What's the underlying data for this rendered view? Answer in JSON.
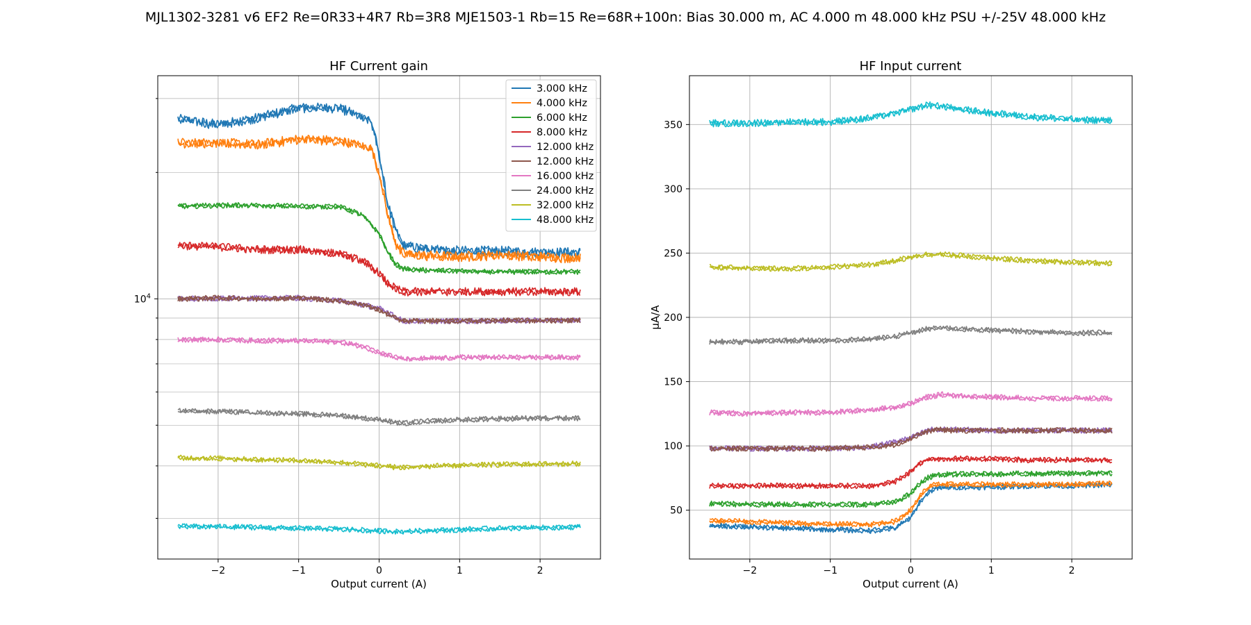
{
  "suptitle": "MJL1302-3281 v6 EF2 Re=0R33+4R7 Rb=3R8 MJE1503-1 Rb=15 Re=68R+100n: Bias 30.000 m, AC 4.000 m 48.000 kHz PSU +/-25V 48.000 kHz",
  "colors": {
    "3.000 kHz": "#1f77b4",
    "4.000 kHz": "#ff7f0e",
    "6.000 kHz": "#2ca02c",
    "8.000 kHz": "#d62728",
    "12.000 kHz a": "#9467bd",
    "12.000 kHz b": "#8c564b",
    "16.000 kHz": "#e377c2",
    "24.000 kHz": "#7f7f7f",
    "32.000 kHz": "#bcbd22",
    "48.000 kHz": "#17becf"
  },
  "chart_data": [
    {
      "type": "line",
      "title": "HF Current gain",
      "xlabel": "Output current (A)",
      "ylabel": "",
      "yscale": "log",
      "xlim": [
        -2.75,
        2.75
      ],
      "ylim": [
        2400,
        34000
      ],
      "xticks": [
        -2,
        -1,
        0,
        1,
        2
      ],
      "xtick_labels": [
        "−2",
        "−1",
        "0",
        "1",
        "2"
      ],
      "ytick_label": {
        "base": "10",
        "exp": "4",
        "value": 10000
      },
      "grid": true,
      "legend_position": "top-right",
      "legend": [
        "3.000 kHz",
        "4.000 kHz",
        "6.000 kHz",
        "8.000 kHz",
        "12.000 kHz",
        "12.000 kHz",
        "16.000 kHz",
        "24.000 kHz",
        "32.000 kHz",
        "48.000 kHz"
      ],
      "series": [
        {
          "name": "3.000 kHz",
          "color": "#1f77b4",
          "x": [
            -2.5,
            -2.0,
            -1.5,
            -1.0,
            -0.5,
            -0.1,
            0.0,
            0.1,
            0.2,
            0.3,
            0.5,
            1.0,
            1.5,
            2.0,
            2.5
          ],
          "y": [
            26800,
            26000,
            27000,
            28500,
            28500,
            26500,
            22000,
            17000,
            14600,
            13400,
            13200,
            13000,
            13000,
            12900,
            12900
          ]
        },
        {
          "name": "4.000 kHz",
          "color": "#ff7f0e",
          "x": [
            -2.5,
            -2.0,
            -1.5,
            -1.0,
            -0.5,
            -0.1,
            0.0,
            0.1,
            0.2,
            0.3,
            0.5,
            1.0,
            1.5,
            2.0,
            2.5
          ],
          "y": [
            23500,
            23500,
            23300,
            24000,
            23800,
            22800,
            20000,
            16000,
            13600,
            12800,
            12700,
            12600,
            12700,
            12600,
            12500
          ]
        },
        {
          "name": "6.000 kHz",
          "color": "#2ca02c",
          "x": [
            -2.5,
            -2.0,
            -1.5,
            -1.0,
            -0.5,
            -0.2,
            0.0,
            0.1,
            0.2,
            0.3,
            0.5,
            1.0,
            1.5,
            2.0,
            2.5
          ],
          "y": [
            16600,
            16700,
            16700,
            16600,
            16600,
            15800,
            14300,
            13000,
            12100,
            11800,
            11700,
            11650,
            11600,
            11600,
            11600
          ]
        },
        {
          "name": "8.000 kHz",
          "color": "#d62728",
          "x": [
            -2.5,
            -2.0,
            -1.5,
            -1.0,
            -0.5,
            -0.2,
            0.0,
            0.1,
            0.2,
            0.3,
            0.5,
            1.0,
            1.5,
            2.0,
            2.5
          ],
          "y": [
            13400,
            13300,
            13100,
            13100,
            12800,
            12300,
            11500,
            10900,
            10600,
            10400,
            10400,
            10400,
            10400,
            10400,
            10400
          ]
        },
        {
          "name": "12.000 kHz",
          "color": "#9467bd",
          "x": [
            -2.5,
            -1.0,
            -0.5,
            0.0,
            0.3,
            1.0,
            2.5
          ],
          "y": [
            10000,
            10050,
            9900,
            9500,
            8850,
            8850,
            8900
          ]
        },
        {
          "name": "12.000 kHz",
          "color": "#8c564b",
          "x": [
            -2.5,
            -2.0,
            -1.5,
            -1.0,
            -0.5,
            -0.2,
            0.0,
            0.2,
            0.3,
            0.5,
            1.0,
            1.5,
            2.0,
            2.5
          ],
          "y": [
            10000,
            10050,
            10000,
            10050,
            9900,
            9700,
            9400,
            9000,
            8850,
            8870,
            8850,
            8880,
            8870,
            8900
          ]
        },
        {
          "name": "16.000 kHz",
          "color": "#e377c2",
          "x": [
            -2.5,
            -2.0,
            -1.5,
            -1.0,
            -0.5,
            -0.2,
            0.0,
            0.2,
            0.3,
            0.5,
            1.0,
            1.5,
            2.0,
            2.5
          ],
          "y": [
            8000,
            8000,
            7950,
            7950,
            7900,
            7700,
            7450,
            7250,
            7200,
            7200,
            7250,
            7250,
            7250,
            7250
          ]
        },
        {
          "name": "24.000 kHz",
          "color": "#7f7f7f",
          "x": [
            -2.5,
            -2.0,
            -1.5,
            -1.0,
            -0.5,
            0.0,
            0.3,
            0.5,
            1.0,
            1.5,
            2.0,
            2.5
          ],
          "y": [
            5400,
            5400,
            5350,
            5320,
            5280,
            5150,
            5050,
            5100,
            5150,
            5180,
            5200,
            5200
          ]
        },
        {
          "name": "32.000 kHz",
          "color": "#bcbd22",
          "x": [
            -2.5,
            -2.0,
            -1.5,
            -1.0,
            -0.5,
            0.0,
            0.3,
            0.5,
            1.0,
            1.5,
            2.0,
            2.5
          ],
          "y": [
            4180,
            4170,
            4140,
            4120,
            4080,
            4000,
            3960,
            3990,
            4010,
            4030,
            4040,
            4050
          ]
        },
        {
          "name": "48.000 kHz",
          "color": "#17becf",
          "x": [
            -2.5,
            -2.0,
            -1.5,
            -1.0,
            -0.5,
            0.0,
            0.3,
            0.5,
            1.0,
            1.5,
            2.0,
            2.5
          ],
          "y": [
            2870,
            2865,
            2855,
            2840,
            2830,
            2800,
            2785,
            2800,
            2820,
            2840,
            2850,
            2860
          ]
        }
      ]
    },
    {
      "type": "line",
      "title": "HF Input current",
      "xlabel": "Output current (A)",
      "ylabel": "µA/A",
      "xlim": [
        -2.75,
        2.75
      ],
      "ylim": [
        12,
        388
      ],
      "xticks": [
        -2,
        -1,
        0,
        1,
        2
      ],
      "xtick_labels": [
        "−2",
        "−1",
        "0",
        "1",
        "2"
      ],
      "yticks": [
        50,
        100,
        150,
        200,
        250,
        300,
        350
      ],
      "ytick_labels": [
        "50",
        "100",
        "150",
        "200",
        "250",
        "300",
        "350"
      ],
      "grid": true,
      "series": [
        {
          "color": "#1f77b4",
          "x": [
            -2.5,
            -2.0,
            -1.5,
            -1.0,
            -0.5,
            -0.2,
            0.0,
            0.1,
            0.2,
            0.3,
            0.5,
            1.0,
            1.5,
            2.0,
            2.5
          ],
          "y": [
            38,
            37,
            36,
            35,
            34,
            36,
            44,
            55,
            63,
            67,
            68,
            68,
            69,
            69,
            70
          ]
        },
        {
          "color": "#ff7f0e",
          "x": [
            -2.5,
            -2.0,
            -1.5,
            -1.0,
            -0.5,
            -0.2,
            0.0,
            0.1,
            0.2,
            0.3,
            0.5,
            1.0,
            1.5,
            2.0,
            2.5
          ],
          "y": [
            42,
            41,
            40,
            39,
            39,
            41,
            50,
            60,
            67,
            70,
            70,
            70,
            70,
            70,
            71
          ]
        },
        {
          "color": "#2ca02c",
          "x": [
            -2.5,
            -2.0,
            -1.5,
            -1.0,
            -0.5,
            -0.2,
            0.0,
            0.1,
            0.2,
            0.3,
            0.5,
            1.0,
            1.5,
            2.0,
            2.5
          ],
          "y": [
            55,
            54.5,
            54.5,
            54.5,
            54.5,
            56,
            63,
            70,
            75,
            77,
            78,
            78,
            78.5,
            78.5,
            79
          ]
        },
        {
          "color": "#d62728",
          "x": [
            -2.5,
            -2.0,
            -1.5,
            -1.0,
            -0.5,
            -0.2,
            0.0,
            0.1,
            0.2,
            0.3,
            0.5,
            1.0,
            1.5,
            2.0,
            2.5
          ],
          "y": [
            69,
            69,
            69,
            69,
            69,
            72,
            80,
            86,
            89,
            90,
            90,
            90,
            89,
            89,
            89
          ]
        },
        {
          "color": "#9467bd",
          "x": [
            -2.5,
            -1.0,
            -0.5,
            0.0,
            0.2,
            0.3,
            1.0,
            2.5
          ],
          "y": [
            98,
            98,
            99,
            106,
            112,
            113,
            112,
            112
          ]
        },
        {
          "color": "#8c564b",
          "x": [
            -2.5,
            -2.0,
            -1.5,
            -1.0,
            -0.5,
            -0.2,
            0.0,
            0.2,
            0.3,
            0.5,
            1.0,
            1.5,
            2.0,
            2.5
          ],
          "y": [
            98,
            98,
            98,
            98,
            99,
            101,
            106,
            111,
            113,
            112,
            112,
            112,
            112,
            112
          ]
        },
        {
          "color": "#e377c2",
          "x": [
            -2.5,
            -2.0,
            -1.5,
            -1.0,
            -0.5,
            -0.2,
            0.0,
            0.2,
            0.4,
            0.6,
            1.0,
            1.5,
            2.0,
            2.5
          ],
          "y": [
            126,
            125,
            126,
            126,
            128,
            130,
            133,
            138,
            140,
            139,
            138,
            137,
            137,
            137
          ]
        },
        {
          "color": "#7f7f7f",
          "x": [
            -2.5,
            -2.0,
            -1.5,
            -1.0,
            -0.5,
            -0.2,
            0.0,
            0.2,
            0.4,
            0.6,
            1.0,
            1.5,
            2.0,
            2.5
          ],
          "y": [
            181,
            181,
            182,
            182,
            183,
            185,
            188,
            191,
            192,
            191,
            190,
            189,
            188,
            188
          ]
        },
        {
          "color": "#bcbd22",
          "x": [
            -2.5,
            -2.0,
            -1.5,
            -1.0,
            -0.5,
            -0.2,
            0.0,
            0.2,
            0.4,
            0.6,
            1.0,
            1.5,
            2.0,
            2.5
          ],
          "y": [
            239,
            238,
            238,
            239,
            241,
            244,
            247,
            249,
            249,
            248,
            246,
            244,
            243,
            242
          ]
        },
        {
          "color": "#17becf",
          "x": [
            -2.5,
            -2.0,
            -1.5,
            -1.0,
            -0.5,
            -0.2,
            0.0,
            0.2,
            0.3,
            0.6,
            1.0,
            1.5,
            2.0,
            2.5
          ],
          "y": [
            351,
            351,
            352,
            352,
            355,
            359,
            362,
            365,
            365,
            362,
            359,
            356,
            354,
            353
          ]
        }
      ]
    }
  ]
}
